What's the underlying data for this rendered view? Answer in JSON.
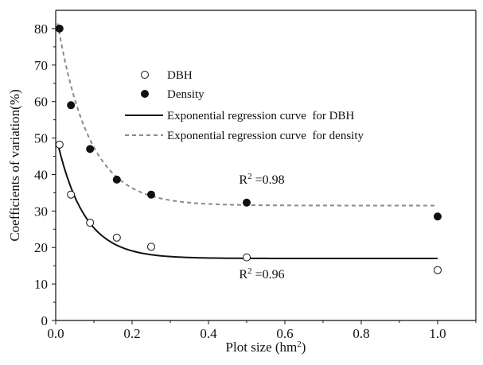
{
  "chart_data": {
    "type": "scatter",
    "xlabel": "Plot size (hm",
    "xlabel_sup": "2",
    "xlabel_end": ")",
    "ylabel": "Coefficients of variation(%)",
    "xlim": [
      0,
      1.1
    ],
    "ylim": [
      0,
      85
    ],
    "xticks": [
      "0.0",
      "0.2",
      "0.4",
      "0.6",
      "0.8",
      "1.0"
    ],
    "xtick_values": [
      0,
      0.2,
      0.4,
      0.6,
      0.8,
      1.0
    ],
    "yticks": [
      "0",
      "10",
      "20",
      "30",
      "40",
      "50",
      "60",
      "70",
      "80"
    ],
    "ytick_values": [
      0,
      10,
      20,
      30,
      40,
      50,
      60,
      70,
      80
    ],
    "grid": false,
    "legend_position": "upper-center",
    "legend": [
      {
        "label": "DBH",
        "marker": "open-circle"
      },
      {
        "label": "Density",
        "marker": "filled-circle"
      },
      {
        "label": "Exponential regression curve  for DBH",
        "line": "solid"
      },
      {
        "label": "Exponential regression curve  for density",
        "line": "dashed"
      }
    ],
    "series": [
      {
        "name": "DBH",
        "marker": "open-circle",
        "color": "#111111",
        "x": [
          0.01,
          0.04,
          0.09,
          0.16,
          0.25,
          0.5,
          1.0
        ],
        "y": [
          48.2,
          34.5,
          26.8,
          22.7,
          20.2,
          17.3,
          13.8
        ]
      },
      {
        "name": "Density",
        "marker": "filled-circle",
        "color": "#111111",
        "x": [
          0.01,
          0.04,
          0.09,
          0.16,
          0.25,
          0.5,
          1.0
        ],
        "y": [
          80.0,
          59.0,
          47.0,
          38.6,
          34.5,
          32.3,
          28.5
        ]
      }
    ],
    "curves": [
      {
        "name": "Exponential regression curve  for DBH",
        "style": "solid",
        "color": "#111111",
        "asymptote": 17,
        "amplitude": 34,
        "rate": 14,
        "x_range": [
          0.005,
          1.0
        ]
      },
      {
        "name": "Exponential regression curve  for density",
        "style": "dashed",
        "color": "#8a8a8a",
        "asymptote": 31.5,
        "amplitude": 53,
        "rate": 12,
        "x_range": [
          0.005,
          1.0
        ]
      }
    ],
    "annotations": [
      {
        "name": "r2-density",
        "prefix": "R",
        "sup": "2",
        "text": " =0.98",
        "x": 0.48,
        "y": 37.5
      },
      {
        "name": "r2-dbh",
        "prefix": "R",
        "sup": "2",
        "text": " =0.96",
        "x": 0.48,
        "y": 11.5
      }
    ]
  }
}
